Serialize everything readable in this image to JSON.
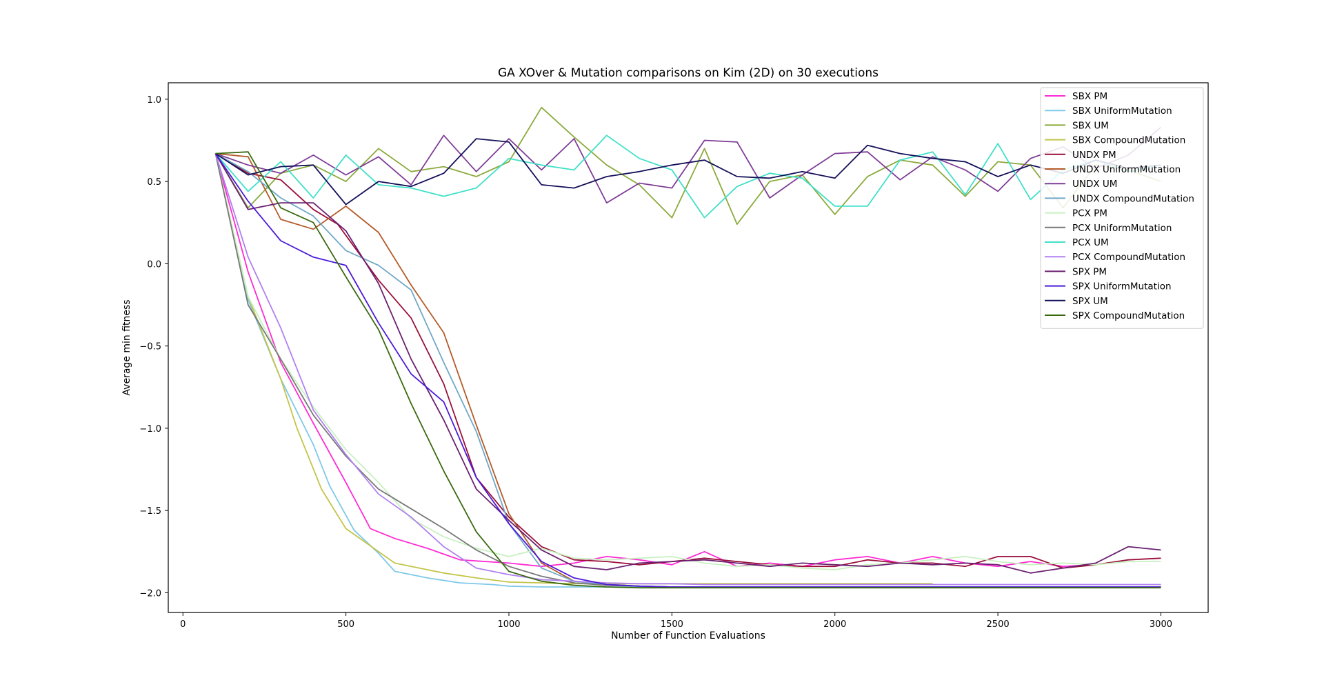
{
  "chart_data": {
    "type": "line",
    "title": "GA XOver & Mutation comparisons on Kim (2D) on 30 executions",
    "xlabel": "Number of Function Evaluations",
    "ylabel": "Average min fitness",
    "xlim": [
      -45,
      3145
    ],
    "ylim": [
      -2.12,
      1.1
    ],
    "xticks": [
      0,
      500,
      1000,
      1500,
      2000,
      2500,
      3000
    ],
    "yticks": [
      -2.0,
      -1.5,
      -1.0,
      -0.5,
      0.0,
      0.5,
      1.0
    ],
    "xtick_labels": [
      "0",
      "500",
      "1000",
      "1500",
      "2000",
      "2500",
      "3000"
    ],
    "ytick_labels": [
      "−2.0",
      "−1.5",
      "−1.0",
      "−0.5",
      "0.0",
      "0.5",
      "1.0"
    ],
    "grid": false,
    "legend_position": "top-right",
    "series": [
      {
        "name": "SBX PM",
        "color": "#ff2ad4",
        "x": [
          100,
          200,
          300,
          400,
          500,
          575,
          650,
          750,
          850,
          1000,
          1100,
          1200,
          1300,
          1400,
          1500,
          1600,
          1700,
          1800,
          1900,
          2000,
          2100,
          2200,
          2300,
          2400,
          2500,
          2600,
          2700,
          2800
        ],
        "y": [
          0.67,
          -0.05,
          -0.6,
          -0.97,
          -1.33,
          -1.61,
          -1.67,
          -1.73,
          -1.8,
          -1.82,
          -1.84,
          -1.82,
          -1.78,
          -1.8,
          -1.83,
          -1.75,
          -1.84,
          -1.82,
          -1.84,
          -1.8,
          -1.78,
          -1.82,
          -1.78,
          -1.82,
          -1.84,
          -1.81,
          -1.84,
          -1.83
        ]
      },
      {
        "name": "SBX UniformMutation",
        "color": "#7ec8e8",
        "x": [
          100,
          200,
          300,
          400,
          450,
          525,
          600,
          650,
          750,
          850,
          950,
          1000,
          1100,
          1200,
          1300,
          1400,
          1500,
          1600,
          1700,
          1800,
          1900,
          2000,
          2100,
          2200,
          2300
        ],
        "y": [
          0.67,
          -0.22,
          -0.7,
          -1.1,
          -1.35,
          -1.62,
          -1.76,
          -1.87,
          -1.91,
          -1.94,
          -1.95,
          -1.96,
          -1.965,
          -1.965,
          -1.965,
          -1.965,
          -1.965,
          -1.965,
          -1.965,
          -1.965,
          -1.965,
          -1.965,
          -1.965,
          -1.965,
          -1.965
        ]
      },
      {
        "name": "SBX UM",
        "color": "#8aaa3c",
        "x": [
          100,
          200,
          300,
          400,
          500,
          600,
          700,
          800,
          900,
          1000,
          1100,
          1200,
          1300,
          1400,
          1500,
          1600,
          1700,
          1800,
          1900,
          2000,
          2100,
          2200,
          2300,
          2400,
          2500,
          2600,
          2700,
          2800,
          2900,
          3000
        ],
        "y": [
          0.67,
          0.34,
          0.55,
          0.6,
          0.5,
          0.7,
          0.56,
          0.59,
          0.53,
          0.62,
          0.95,
          0.77,
          0.6,
          0.48,
          0.28,
          0.7,
          0.24,
          0.5,
          0.54,
          0.3,
          0.53,
          0.63,
          0.6,
          0.41,
          0.62,
          0.6,
          0.34,
          0.6,
          0.57,
          0.5
        ]
      },
      {
        "name": "SBX CompoundMutation",
        "color": "#c2c44a",
        "x": [
          100,
          200,
          300,
          350,
          425,
          500,
          650,
          800,
          900,
          1000,
          1100,
          1200,
          1300,
          1400,
          1500,
          1600,
          1700,
          1800,
          1900,
          2000,
          2100,
          2200,
          2300
        ],
        "y": [
          0.67,
          -0.2,
          -0.7,
          -1.0,
          -1.37,
          -1.61,
          -1.82,
          -1.88,
          -1.91,
          -1.935,
          -1.94,
          -1.945,
          -1.945,
          -1.945,
          -1.945,
          -1.945,
          -1.945,
          -1.945,
          -1.945,
          -1.945,
          -1.945,
          -1.945,
          -1.945
        ]
      },
      {
        "name": "UNDX PM",
        "color": "#9a0f3a",
        "x": [
          100,
          200,
          300,
          400,
          475,
          600,
          700,
          800,
          900,
          1000,
          1100,
          1200,
          1300,
          1400,
          1500,
          1600,
          1700,
          1800,
          1900,
          2000,
          2100,
          2200,
          2300,
          2400,
          2500,
          2600,
          2700,
          2800,
          2900,
          3000
        ],
        "y": [
          0.67,
          0.55,
          0.51,
          0.33,
          0.24,
          -0.1,
          -0.33,
          -0.73,
          -1.3,
          -1.54,
          -1.72,
          -1.8,
          -1.81,
          -1.83,
          -1.81,
          -1.79,
          -1.81,
          -1.83,
          -1.84,
          -1.84,
          -1.8,
          -1.82,
          -1.82,
          -1.84,
          -1.78,
          -1.78,
          -1.85,
          -1.83,
          -1.8,
          -1.79
        ]
      },
      {
        "name": "UNDX UniformMutation",
        "color": "#b45a28",
        "x": [
          100,
          200,
          300,
          400,
          500,
          600,
          700,
          800,
          900,
          1000,
          1100,
          1200,
          1300,
          1400,
          1500,
          1600,
          1700,
          1800,
          1900,
          2000,
          2100,
          2200,
          2300,
          2400,
          2500,
          2600,
          2700,
          2800,
          2900,
          3000
        ],
        "y": [
          0.67,
          0.65,
          0.27,
          0.21,
          0.35,
          0.19,
          -0.13,
          -0.42,
          -0.98,
          -1.52,
          -1.82,
          -1.93,
          -1.95,
          -1.96,
          -1.965,
          -1.965,
          -1.965,
          -1.965,
          -1.965,
          -1.965,
          -1.965,
          -1.965,
          -1.965,
          -1.965,
          -1.965,
          -1.965,
          -1.965,
          -1.965,
          -1.965,
          -1.965
        ]
      },
      {
        "name": "UNDX UM",
        "color": "#7e3c96",
        "x": [
          100,
          200,
          300,
          400,
          500,
          600,
          700,
          800,
          900,
          1000,
          1100,
          1200,
          1300,
          1400,
          1500,
          1600,
          1700,
          1800,
          1900,
          2000,
          2100,
          2200,
          2300,
          2400,
          2500,
          2600,
          2700,
          2800,
          2900,
          3000
        ],
        "y": [
          0.67,
          0.6,
          0.55,
          0.66,
          0.54,
          0.65,
          0.48,
          0.78,
          0.56,
          0.76,
          0.57,
          0.76,
          0.37,
          0.49,
          0.46,
          0.75,
          0.74,
          0.4,
          0.54,
          0.67,
          0.68,
          0.51,
          0.65,
          0.57,
          0.44,
          0.64,
          0.71,
          0.58,
          0.66,
          0.83
        ]
      },
      {
        "name": "UNDX CompoundMutation",
        "color": "#70a8c8",
        "x": [
          100,
          200,
          300,
          400,
          500,
          600,
          700,
          800,
          900,
          1000,
          1100,
          1200,
          1300,
          1400,
          1500,
          1600,
          1700,
          1800,
          1900,
          2000,
          2100,
          2200,
          2300,
          2400,
          2500,
          2600,
          2700,
          2800,
          2900,
          3000
        ],
        "y": [
          0.67,
          0.56,
          0.4,
          0.29,
          0.08,
          -0.01,
          -0.16,
          -0.6,
          -1.02,
          -1.58,
          -1.85,
          -1.93,
          -1.95,
          -1.96,
          -1.965,
          -1.965,
          -1.965,
          -1.965,
          -1.965,
          -1.965,
          -1.965,
          -1.965,
          -1.965,
          -1.965,
          -1.965,
          -1.965,
          -1.965,
          -1.965,
          -1.965,
          -1.965
        ]
      },
      {
        "name": "PCX PM",
        "color": "#c8f0c0",
        "x": [
          100,
          200,
          300,
          400,
          500,
          600,
          700,
          800,
          900,
          1000,
          1100,
          1200,
          1300,
          1400,
          1500,
          1600,
          1700,
          1800,
          1900,
          2000,
          2100,
          2200,
          2300,
          2400,
          2500,
          2600,
          2700,
          2800,
          2900,
          3000
        ],
        "y": [
          0.67,
          -0.2,
          -0.58,
          -0.87,
          -1.13,
          -1.33,
          -1.55,
          -1.66,
          -1.73,
          -1.78,
          -1.73,
          -1.79,
          -1.8,
          -1.79,
          -1.78,
          -1.82,
          -1.84,
          -1.83,
          -1.85,
          -1.86,
          -1.83,
          -1.82,
          -1.8,
          -1.78,
          -1.81,
          -1.83,
          -1.82,
          -1.83,
          -1.81,
          -1.81
        ]
      },
      {
        "name": "PCX UniformMutation",
        "color": "#787878",
        "x": [
          100,
          200,
          300,
          400,
          500,
          600,
          700,
          800,
          900,
          1000,
          1100,
          1200,
          1300,
          1400,
          1500,
          1600,
          1700,
          1800,
          1900,
          2000,
          2100,
          2200,
          2300,
          2400,
          2500,
          2600,
          2700,
          2800,
          2900,
          3000
        ],
        "y": [
          0.67,
          -0.25,
          -0.58,
          -0.92,
          -1.17,
          -1.37,
          -1.49,
          -1.61,
          -1.74,
          -1.84,
          -1.9,
          -1.94,
          -1.955,
          -1.96,
          -1.965,
          -1.965,
          -1.965,
          -1.965,
          -1.965,
          -1.965,
          -1.965,
          -1.965,
          -1.965,
          -1.965,
          -1.965,
          -1.965,
          -1.965,
          -1.965,
          -1.965,
          -1.965
        ]
      },
      {
        "name": "PCX UM",
        "color": "#40e0c8",
        "x": [
          100,
          200,
          300,
          400,
          500,
          600,
          700,
          800,
          900,
          1000,
          1100,
          1200,
          1300,
          1400,
          1500,
          1600,
          1700,
          1800,
          1900,
          2000,
          2100,
          2200,
          2300,
          2400,
          2500,
          2600,
          2700,
          2800,
          2900,
          3000
        ],
        "y": [
          0.67,
          0.44,
          0.62,
          0.4,
          0.66,
          0.48,
          0.46,
          0.41,
          0.46,
          0.64,
          0.6,
          0.57,
          0.78,
          0.64,
          0.57,
          0.28,
          0.47,
          0.55,
          0.52,
          0.35,
          0.35,
          0.63,
          0.68,
          0.42,
          0.73,
          0.39,
          0.57,
          0.63,
          0.56,
          0.6
        ]
      },
      {
        "name": "PCX CompoundMutation",
        "color": "#b080f0",
        "x": [
          100,
          200,
          300,
          400,
          500,
          600,
          700,
          800,
          900,
          1000,
          1100,
          1200,
          1300,
          1400,
          1500,
          1600,
          1700,
          1800,
          1900,
          2000,
          2100,
          2200,
          2300,
          2400,
          2500,
          2600,
          2700,
          2800,
          2900,
          3000
        ],
        "y": [
          0.67,
          0.04,
          -0.39,
          -0.89,
          -1.16,
          -1.4,
          -1.54,
          -1.72,
          -1.85,
          -1.89,
          -1.92,
          -1.93,
          -1.94,
          -1.945,
          -1.945,
          -1.95,
          -1.95,
          -1.95,
          -1.95,
          -1.95,
          -1.95,
          -1.95,
          -1.95,
          -1.95,
          -1.95,
          -1.95,
          -1.95,
          -1.95,
          -1.95,
          -1.95
        ]
      },
      {
        "name": "SPX PM",
        "color": "#6a2070",
        "x": [
          100,
          200,
          300,
          400,
          500,
          600,
          700,
          800,
          900,
          1000,
          1100,
          1200,
          1300,
          1400,
          1500,
          1600,
          1700,
          1800,
          1900,
          2000,
          2100,
          2200,
          2300,
          2400,
          2500,
          2600,
          2700,
          2800,
          2900,
          3000
        ],
        "y": [
          0.67,
          0.33,
          0.37,
          0.37,
          0.2,
          -0.12,
          -0.58,
          -0.95,
          -1.37,
          -1.56,
          -1.74,
          -1.84,
          -1.86,
          -1.82,
          -1.81,
          -1.8,
          -1.82,
          -1.84,
          -1.82,
          -1.83,
          -1.84,
          -1.82,
          -1.83,
          -1.82,
          -1.83,
          -1.88,
          -1.85,
          -1.82,
          -1.72,
          -1.74
        ]
      },
      {
        "name": "SPX UniformMutation",
        "color": "#4c1ad8",
        "x": [
          100,
          200,
          300,
          400,
          500,
          600,
          700,
          800,
          900,
          1000,
          1100,
          1200,
          1300,
          1400,
          1500,
          1600,
          1700,
          1800,
          1900,
          2000,
          2100,
          2200,
          2300,
          2400,
          2500,
          2600,
          2700,
          2800,
          2900,
          3000
        ],
        "y": [
          0.67,
          0.38,
          0.14,
          0.04,
          -0.01,
          -0.36,
          -0.67,
          -0.84,
          -1.3,
          -1.58,
          -1.81,
          -1.91,
          -1.95,
          -1.96,
          -1.965,
          -1.965,
          -1.965,
          -1.965,
          -1.965,
          -1.965,
          -1.965,
          -1.965,
          -1.965,
          -1.965,
          -1.965,
          -1.965,
          -1.965,
          -1.965,
          -1.965,
          -1.965
        ]
      },
      {
        "name": "SPX UM",
        "color": "#14105a",
        "x": [
          100,
          200,
          300,
          400,
          500,
          600,
          700,
          800,
          900,
          1000,
          1100,
          1200,
          1300,
          1400,
          1500,
          1600,
          1700,
          1800,
          1900,
          2000,
          2100,
          2200,
          2300,
          2400,
          2500,
          2600,
          2700,
          2800,
          2900,
          3000
        ],
        "y": [
          0.67,
          0.54,
          0.59,
          0.6,
          0.36,
          0.5,
          0.47,
          0.55,
          0.76,
          0.74,
          0.48,
          0.46,
          0.53,
          0.56,
          0.6,
          0.63,
          0.53,
          0.52,
          0.56,
          0.52,
          0.72,
          0.67,
          0.64,
          0.62,
          0.53,
          0.6,
          0.55,
          0.63,
          0.58,
          0.6
        ]
      },
      {
        "name": "SPX CompoundMutation",
        "color": "#3a6a10",
        "x": [
          100,
          200,
          300,
          400,
          500,
          600,
          700,
          800,
          900,
          1000,
          1100,
          1200,
          1300,
          1400,
          1500,
          1600,
          1700,
          1800,
          1900,
          2000,
          2100,
          2200,
          2300,
          2400,
          2500,
          2600,
          2700,
          2800,
          2900,
          3000
        ],
        "y": [
          0.67,
          0.68,
          0.34,
          0.25,
          -0.08,
          -0.4,
          -0.85,
          -1.26,
          -1.63,
          -1.87,
          -1.93,
          -1.955,
          -1.965,
          -1.97,
          -1.97,
          -1.97,
          -1.97,
          -1.97,
          -1.97,
          -1.97,
          -1.97,
          -1.97,
          -1.97,
          -1.97,
          -1.97,
          -1.97,
          -1.97,
          -1.97,
          -1.97,
          -1.97
        ]
      }
    ]
  }
}
